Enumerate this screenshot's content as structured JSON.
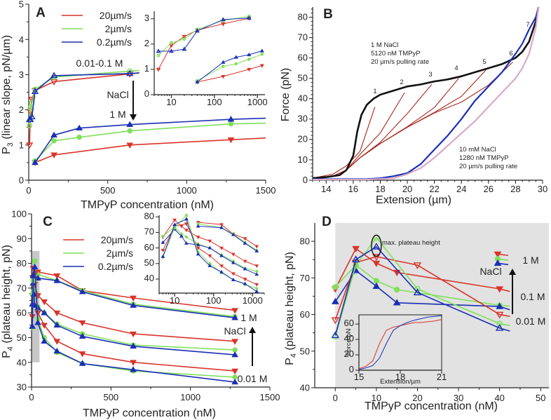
{
  "figure": {
    "colors": {
      "red": "#d9342a",
      "green": "#7fe05a",
      "blue": "#1a2fb5",
      "black": "#111111",
      "darkred": "#a8281c",
      "pink": "#d7aac8",
      "gray": "#e2e2e2",
      "band": "#c8c8c8"
    }
  },
  "chart_data": [
    {
      "panel": "A",
      "type": "line",
      "xlabel": "TMPyP concentration (nM)",
      "ylabel": "P3 (linear slope, pN/µm)",
      "xlim": [
        0,
        1500
      ],
      "ylim": [
        0,
        5
      ],
      "xticks": [
        0,
        500,
        1000,
        1500
      ],
      "yticks": [
        0,
        1,
        2,
        3,
        4,
        5
      ],
      "legend": [
        {
          "label": "20µm/s",
          "color": "red"
        },
        {
          "label": "2µm/s",
          "color": "green"
        },
        {
          "label": "0.2µm/s",
          "color": "blue"
        }
      ],
      "legend_position": "top-left",
      "annotations": [
        "0.01-0.1 M",
        "NaCl",
        "1 M"
      ],
      "series": [
        {
          "name": "20µm/s (0.01-0.1 M)",
          "color": "red",
          "marker": "tri-down-open",
          "x": [
            5,
            10,
            20,
            40,
            160,
            640,
            700
          ],
          "y": [
            1.0,
            1.95,
            2.3,
            2.55,
            2.8,
            3.02,
            3.05
          ]
        },
        {
          "name": "2µm/s (0.01-0.1 M)",
          "color": "green",
          "marker": "circle-open",
          "x": [
            5,
            10,
            20,
            40,
            160,
            640,
            700
          ],
          "y": [
            1.55,
            2.05,
            2.2,
            2.58,
            2.93,
            3.1,
            3.12
          ]
        },
        {
          "name": "0.2µm/s (0.01-0.1 M)",
          "color": "blue",
          "marker": "tri-up-open",
          "x": [
            5,
            10,
            20,
            40,
            160,
            640,
            700
          ],
          "y": [
            1.72,
            1.72,
            1.8,
            2.52,
            2.97,
            3.03,
            3.05
          ]
        },
        {
          "name": "20µm/s (1 M)",
          "color": "red",
          "marker": "tri-down",
          "x": [
            40,
            160,
            640,
            1280,
            1500
          ],
          "y": [
            0.5,
            0.72,
            1.0,
            1.15,
            1.2
          ]
        },
        {
          "name": "2µm/s (1 M)",
          "color": "green",
          "marker": "circle",
          "x": [
            40,
            160,
            320,
            640,
            1280,
            1500
          ],
          "y": [
            0.55,
            1.12,
            1.22,
            1.4,
            1.6,
            1.62
          ]
        },
        {
          "name": "0.2µm/s (1 M)",
          "color": "blue",
          "marker": "tri-up",
          "x": [
            40,
            160,
            320,
            640,
            1280,
            1500
          ],
          "y": [
            0.5,
            1.28,
            1.48,
            1.58,
            1.73,
            1.76
          ]
        }
      ],
      "inset": {
        "xscale": "log",
        "xlim": [
          4,
          1500
        ],
        "ylim": [
          0,
          3.3
        ],
        "xticks": [
          10,
          100,
          1000
        ],
        "yticks": [
          0,
          1,
          2,
          3
        ]
      }
    },
    {
      "panel": "B",
      "type": "line",
      "xlabel": "Extension (µm)",
      "ylabel": "Force (pN)",
      "xlim": [
        13,
        30
      ],
      "ylim": [
        0,
        85
      ],
      "xticks": [
        14,
        16,
        18,
        20,
        22,
        24,
        26,
        28,
        30
      ],
      "yticks": [
        0,
        10,
        20,
        30,
        40,
        50,
        60,
        70,
        80
      ],
      "annotations": [
        {
          "text": "1 M NaCl"
        },
        {
          "text": "5120 nM TMPyP"
        },
        {
          "text": "20 µm/s pulling rate"
        },
        {
          "text": "10 mM NaCl"
        },
        {
          "text": "1280 nM TMPyP"
        },
        {
          "text": "20 µm/s pulling rate"
        }
      ],
      "cycle_labels": [
        "1",
        "2",
        "3",
        "4",
        "5",
        "6",
        "7"
      ],
      "series": [
        {
          "name": "1 M stretch",
          "color": "black",
          "x": [
            13,
            14,
            15,
            15.5,
            16,
            16.3,
            16.6,
            17,
            17.5,
            18,
            19,
            20,
            21,
            22,
            23,
            24,
            25,
            26,
            27,
            28,
            28.5,
            29,
            29.5,
            29.7
          ],
          "y": [
            1,
            1.5,
            2.5,
            5,
            12,
            24,
            32,
            37,
            40,
            42,
            44,
            46,
            47,
            48.5,
            49.5,
            51,
            53,
            55,
            57,
            60,
            63,
            68,
            78,
            85
          ]
        },
        {
          "name": "10 mM stretch",
          "color": "blue",
          "x": [
            13,
            15,
            17,
            18,
            19,
            20,
            21,
            22,
            23,
            24,
            25,
            26,
            27,
            28,
            28.5,
            29,
            29.5,
            29.7
          ],
          "y": [
            0.5,
            0.5,
            0.5,
            1,
            2,
            3.5,
            8,
            15,
            22,
            30,
            39,
            46,
            53,
            62,
            67,
            74,
            80,
            85
          ]
        },
        {
          "name": "10 mM relax",
          "color": "pink",
          "x": [
            13,
            15,
            17,
            19,
            20,
            21,
            22,
            23,
            24,
            25,
            26,
            27,
            28,
            28.5,
            29,
            29.5,
            29.7
          ],
          "y": [
            0.3,
            0.3,
            0.3,
            1,
            3,
            6,
            11,
            17,
            23,
            29,
            36,
            43,
            50,
            55,
            62,
            75,
            85
          ]
        }
      ],
      "relax_curves": [
        {
          "name": "relax 1",
          "peak_x": 17.6,
          "peak_y": 36
        },
        {
          "name": "relax 2",
          "peak_x": 19.8,
          "peak_y": 43
        },
        {
          "name": "relax 3",
          "peak_x": 21.8,
          "peak_y": 47
        },
        {
          "name": "relax 4",
          "peak_x": 23.8,
          "peak_y": 50
        },
        {
          "name": "relax 5",
          "peak_x": 25.8,
          "peak_y": 54
        },
        {
          "name": "relax 6",
          "peak_x": 27.8,
          "peak_y": 58
        }
      ]
    },
    {
      "panel": "C",
      "type": "line",
      "xlabel": "TMPyP concentration (nM)",
      "ylabel": "P4 (plateau height, pN)",
      "xlim": [
        0,
        1500
      ],
      "ylim": [
        30,
        100
      ],
      "xticks": [
        0,
        500,
        1000,
        1500
      ],
      "yticks": [
        30,
        40,
        50,
        60,
        70,
        80,
        90,
        100
      ],
      "legend": [
        {
          "label": "20µm/s",
          "color": "red"
        },
        {
          "label": "2µm/s",
          "color": "green"
        },
        {
          "label": "0.2µm/s",
          "color": "blue"
        }
      ],
      "legend_position": "top-left",
      "annotations": [
        "1 M",
        "NaCl",
        "0.01 M"
      ],
      "shaded_region": {
        "x": [
          0,
          50
        ],
        "y": [
          40,
          85
        ]
      },
      "series": [
        {
          "name": "20µm/s 1 M",
          "color": "red",
          "x": [
            40,
            160,
            320,
            640,
            1280
          ],
          "y": [
            76.5,
            75,
            69,
            66,
            61
          ]
        },
        {
          "name": "2µm/s 1 M",
          "color": "green",
          "x": [
            40,
            160,
            320,
            640,
            1280
          ],
          "y": [
            75.5,
            73,
            69,
            63.5,
            58.5
          ]
        },
        {
          "name": "0.2µm/s 1 M",
          "color": "blue",
          "x": [
            40,
            160,
            320,
            640,
            1280
          ],
          "y": [
            74,
            73,
            68.5,
            63,
            58
          ]
        },
        {
          "name": "20µm/s 0.1 M",
          "color": "red",
          "x": [
            5,
            10,
            15,
            20,
            40,
            80,
            160,
            320,
            640,
            1280
          ],
          "y": [
            67,
            78,
            74,
            71.5,
            67,
            64.5,
            60,
            56,
            51.5,
            48.5
          ]
        },
        {
          "name": "2µm/s 0.1 M",
          "color": "green",
          "x": [
            5,
            10,
            15,
            20,
            40,
            80,
            160,
            320,
            640,
            1280
          ],
          "y": [
            67.5,
            73.5,
            69,
            67,
            62.5,
            60,
            55.5,
            51.5,
            47,
            45
          ]
        },
        {
          "name": "0.2µm/s 0.1 M",
          "color": "blue",
          "x": [
            5,
            10,
            15,
            20,
            40,
            80,
            160,
            320,
            640,
            1280
          ],
          "y": [
            63.5,
            72,
            67.5,
            63,
            62,
            60,
            55,
            50.5,
            46.5,
            43
          ]
        },
        {
          "name": "20µm/s 0.01 M",
          "color": "red",
          "x": [
            5,
            10,
            20,
            40,
            80,
            160,
            320,
            640,
            1280
          ],
          "y": [
            58.5,
            74,
            75.5,
            60,
            55,
            48.5,
            43.5,
            40,
            36.5
          ]
        },
        {
          "name": "2µm/s 0.01 M",
          "color": "green",
          "x": [
            5,
            10,
            20,
            40,
            80,
            160,
            320,
            640,
            1280
          ],
          "y": [
            54,
            73,
            81,
            57.5,
            50,
            44,
            39.5,
            36.5,
            34
          ]
        },
        {
          "name": "0.2µm/s 0.01 M",
          "color": "blue",
          "x": [
            5,
            10,
            20,
            40,
            80,
            160,
            320,
            640,
            1280
          ],
          "y": [
            54.5,
            75,
            78.5,
            56,
            48.5,
            44.5,
            39.5,
            37,
            32
          ]
        }
      ],
      "inset": {
        "xscale": "log",
        "xlim": [
          4,
          2000
        ],
        "ylim": [
          31,
          81
        ],
        "xticks": [
          10,
          100,
          1000
        ],
        "yticks": [
          40,
          50,
          60,
          70,
          80
        ]
      }
    },
    {
      "panel": "D",
      "type": "line",
      "xlabel": "TMPyP concentration (nM)",
      "ylabel": "P4 (plateau height, pN)",
      "xlim": [
        -5,
        52
      ],
      "ylim": [
        40,
        85
      ],
      "xticks": [
        0,
        10,
        20,
        30,
        40,
        50
      ],
      "yticks": [
        40,
        50,
        60,
        70,
        80
      ],
      "annotations": [
        "max. plateau height",
        "1 M",
        "NaCl",
        "0.1 M",
        "0.01 M"
      ],
      "series": [
        {
          "name": "20µm/s 0.1 M",
          "color": "red",
          "marker": "tri-down",
          "x": [
            0,
            5,
            10,
            15,
            40,
            42.5
          ],
          "y": [
            67,
            78,
            74,
            71.5,
            67,
            66.3
          ]
        },
        {
          "name": "2µm/s 0.1 M",
          "color": "green",
          "marker": "circle",
          "x": [
            0,
            5,
            10,
            15,
            40,
            42.5
          ],
          "y": [
            67.5,
            73.5,
            69.2,
            66.8,
            62.5,
            62.3
          ]
        },
        {
          "name": "0.2µm/s 0.1 M",
          "color": "blue",
          "marker": "tri-up",
          "x": [
            0,
            5,
            10,
            15,
            40,
            42.5
          ],
          "y": [
            63.5,
            72,
            67.7,
            63.2,
            62.2,
            61.3
          ]
        },
        {
          "name": "20µm/s 0.01 M",
          "color": "red",
          "marker": "tri-down-open",
          "x": [
            0,
            5,
            10,
            20,
            40,
            42.5
          ],
          "y": [
            58.5,
            74.2,
            75.8,
            73.5,
            60,
            59.5
          ]
        },
        {
          "name": "2µm/s 0.01 M",
          "color": "green",
          "marker": "circle-open",
          "x": [
            0,
            5,
            10,
            20,
            40,
            42.5
          ],
          "y": [
            54,
            73.4,
            81,
            67,
            57.5,
            57
          ]
        },
        {
          "name": "0.2µm/s 0.01 M",
          "color": "blue",
          "marker": "tri-up-open",
          "x": [
            0,
            5,
            10,
            20,
            40,
            42.5
          ],
          "y": [
            54.3,
            75,
            78.5,
            66,
            56.3,
            55.5
          ]
        }
      ],
      "inset": {
        "xlabel": "Extension/µm",
        "ylabel": "Force/pN",
        "xlim": [
          15,
          21
        ],
        "ylim": [
          0,
          72
        ],
        "xticks": [
          15,
          18,
          21
        ],
        "yticks": [
          0,
          20,
          40,
          60
        ],
        "series": [
          {
            "name": "red",
            "color": "red",
            "x": [
              15,
              15.5,
              16,
              16.5,
              17,
              17.5,
              18,
              18.5,
              19,
              19.5,
              20,
              20.5,
              21
            ],
            "y": [
              2,
              5,
              12,
              35,
              52,
              56,
              58,
              60,
              62,
              62,
              63,
              64,
              66
            ]
          },
          {
            "name": "blue",
            "color": "blue",
            "x": [
              15,
              15.5,
              16,
              16.5,
              17,
              17.5,
              18,
              18.5,
              19,
              19.5,
              20,
              20.5,
              21
            ],
            "y": [
              1,
              3,
              6,
              16,
              35,
              52,
              58,
              62,
              65,
              67,
              69,
              70,
              71
            ]
          }
        ]
      }
    }
  ]
}
